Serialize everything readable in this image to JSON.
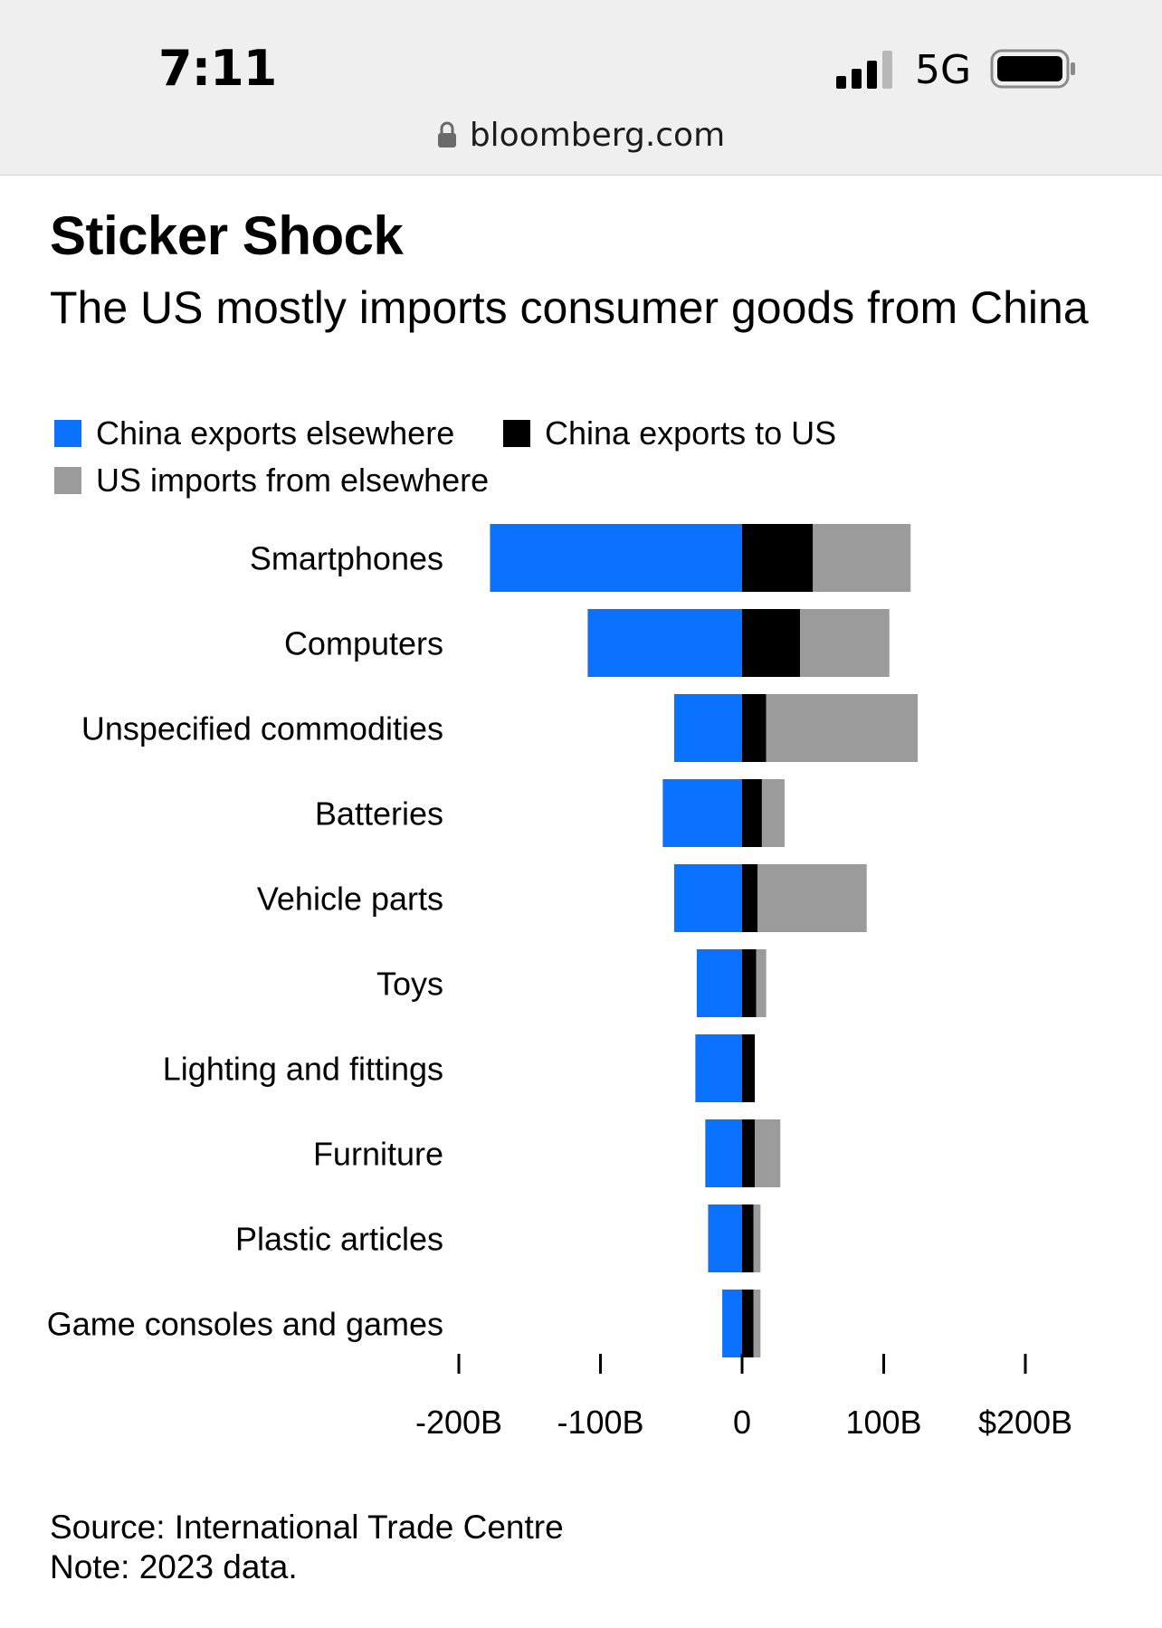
{
  "status_bar": {
    "time": "7:11",
    "network": "5G",
    "url": "bloomberg.com"
  },
  "title": "Sticker Shock",
  "subtitle": "The US mostly imports consumer goods from China",
  "legend": [
    {
      "name": "China exports elsewhere",
      "color": "#0a72ff"
    },
    {
      "name": "China exports to US",
      "color": "#000000"
    },
    {
      "name": "US imports from elsewhere",
      "color": "#9b9b9b"
    }
  ],
  "chart_data": {
    "type": "bar",
    "orientation": "horizontal",
    "stacked": "diverging",
    "categories": [
      "Smartphones",
      "Computers",
      "Unspecified commodities",
      "Batteries",
      "Vehicle parts",
      "Toys",
      "Lighting and fittings",
      "Furniture",
      "Plastic articles",
      "Game consoles and games"
    ],
    "series": [
      {
        "name": "China exports elsewhere",
        "color": "#0a72ff",
        "values": [
          -178,
          -109,
          -48,
          -56,
          -48,
          -32,
          -33,
          -26,
          -24,
          -14
        ]
      },
      {
        "name": "China exports to US",
        "color": "#000000",
        "values": [
          50,
          41,
          17,
          14,
          11,
          10,
          9,
          9,
          8,
          8
        ]
      },
      {
        "name": "US imports from elsewhere",
        "color": "#9b9b9b",
        "values": [
          69,
          63,
          107,
          16,
          77,
          7,
          0,
          18,
          5,
          5
        ]
      }
    ],
    "xlim": [
      -200,
      200
    ],
    "x_ticks": [
      -200,
      -100,
      0,
      100,
      200
    ],
    "x_tick_labels": [
      "-200B",
      "-100B",
      "0",
      "100B",
      "$200B"
    ],
    "grid": false
  },
  "footer": {
    "source": "Source: International Trade Centre",
    "note": "Note: 2023 data."
  }
}
